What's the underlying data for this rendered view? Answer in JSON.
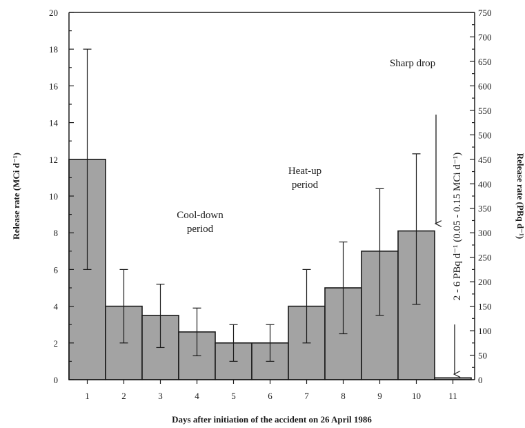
{
  "chart_data": {
    "type": "bar",
    "categories": [
      "1",
      "2",
      "3",
      "4",
      "5",
      "6",
      "7",
      "8",
      "9",
      "10",
      "11"
    ],
    "values": [
      12,
      4,
      3.5,
      2.6,
      2,
      2,
      4,
      5,
      7,
      8.1,
      0.1
    ],
    "error_low": [
      6,
      2,
      1.75,
      1.3,
      1,
      1,
      2,
      2.5,
      3.5,
      4.1,
      null
    ],
    "error_high": [
      18,
      6,
      5.2,
      3.9,
      3,
      3,
      6,
      7.5,
      10.4,
      12.3,
      null
    ],
    "title": "",
    "xlabel": "Days after initiation of the accident on 26 April 1986",
    "ylabel": "Release rate (MCi d⁻¹)",
    "ylabel_right": "Release rate (PBq d⁻¹)",
    "ylim": [
      0,
      20
    ],
    "ylim_right": [
      0,
      750
    ],
    "yticks": [
      "0",
      "2",
      "4",
      "6",
      "8",
      "10",
      "12",
      "14",
      "16",
      "18",
      "20"
    ],
    "yticks_right": [
      "0",
      "50",
      "100",
      "150",
      "200",
      "250",
      "300",
      "350",
      "400",
      "450",
      "500",
      "550",
      "600",
      "650",
      "700",
      "750"
    ],
    "grid": false,
    "colors": {
      "bar": "#a3a3a3",
      "edge": "#1a1a1a"
    },
    "annotations": {
      "cooldown": [
        "Cool-down",
        "period"
      ],
      "heatup": [
        "Heat-up",
        "period"
      ],
      "sharp_drop": "Sharp drop",
      "day11_range": "2 - 6 PBq d⁻¹ (0.05 - 0.15 MCi d⁻¹)"
    }
  }
}
